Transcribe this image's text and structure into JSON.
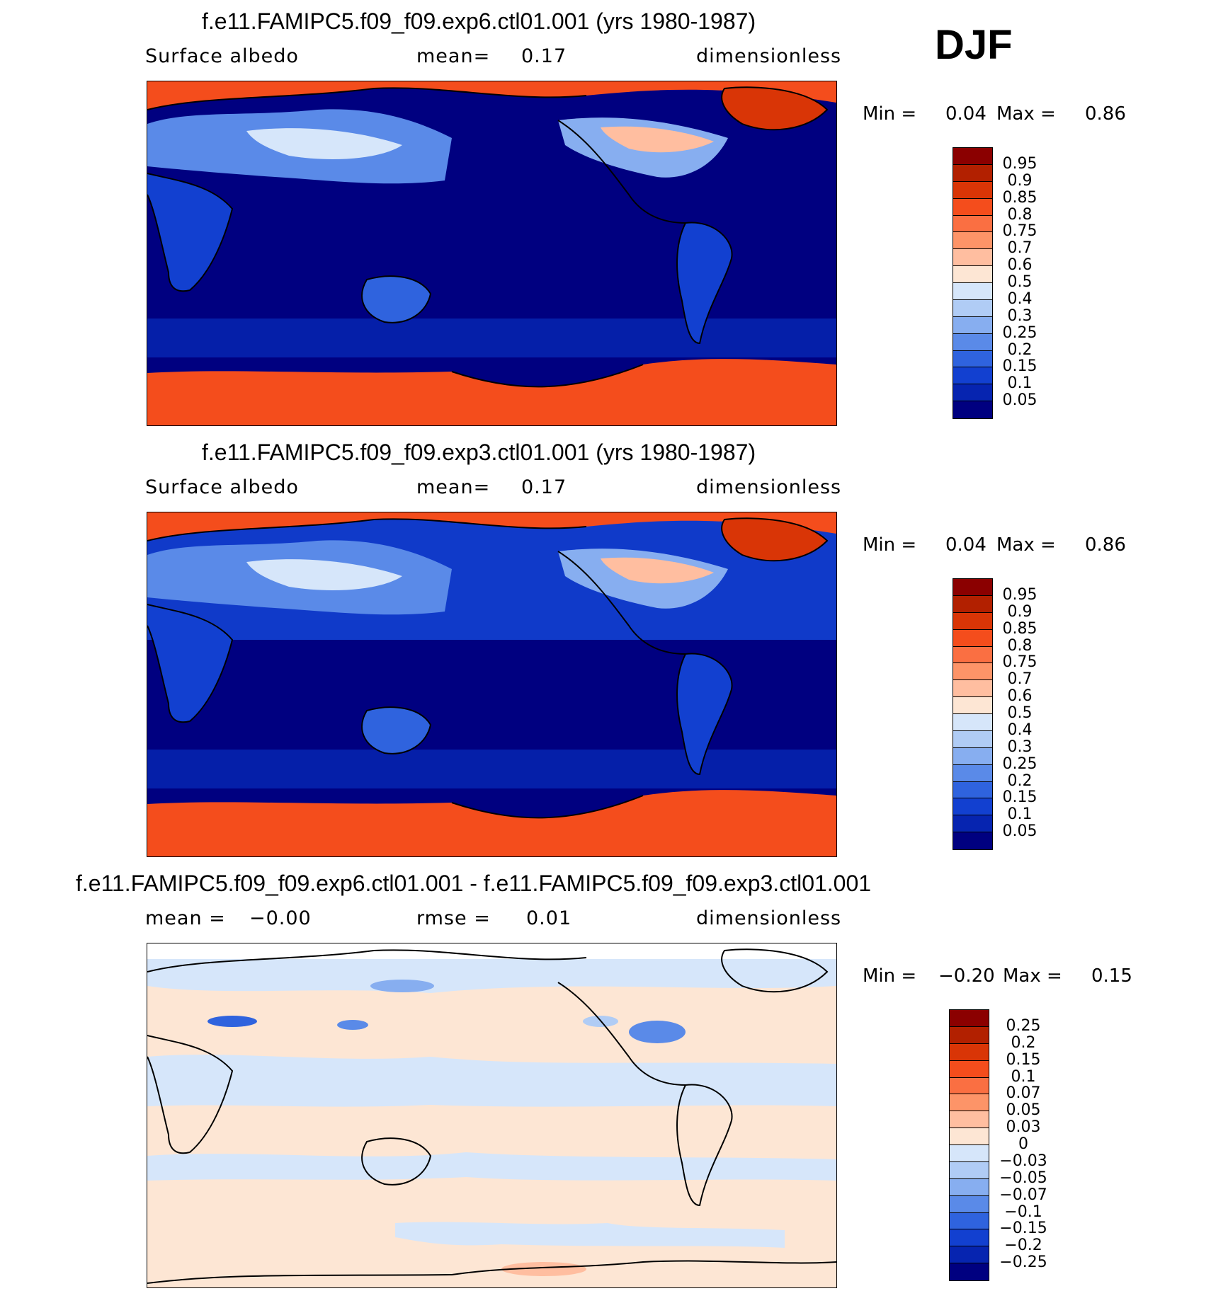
{
  "season": "DJF",
  "panels": [
    {
      "title": "f.e11.FAMIPC5.f09_f09.exp6.ctl01.001 (yrs 1980-1987)",
      "left_text": "Surface albedo",
      "middle_label": "mean=",
      "middle_value": "0.17",
      "right_text": "dimensionless",
      "min_label": "Min =",
      "min_value": "0.04",
      "max_label": "Max =",
      "max_value": "0.86",
      "colorbar_labels": [
        "0.95",
        "0.9",
        "0.85",
        "0.8",
        "0.75",
        "0.7",
        "0.6",
        "0.5",
        "0.4",
        "0.3",
        "0.25",
        "0.2",
        "0.15",
        "0.1",
        "0.05"
      ],
      "colorbar_colors": [
        "#8b0000",
        "#b22000",
        "#d93506",
        "#f44d1c",
        "#fa6f42",
        "#fd9468",
        "#ffbea0",
        "#fde6d4",
        "#d6e6fa",
        "#b0ccf5",
        "#87aef0",
        "#5a8ae8",
        "#2f63de",
        "#1240d0",
        "#0624b0",
        "#000080"
      ]
    },
    {
      "title": "f.e11.FAMIPC5.f09_f09.exp3.ctl01.001 (yrs 1980-1987)",
      "left_text": "Surface albedo",
      "middle_label": "mean=",
      "middle_value": "0.17",
      "right_text": "dimensionless",
      "min_label": "Min =",
      "min_value": "0.04",
      "max_label": "Max =",
      "max_value": "0.86",
      "colorbar_labels": [
        "0.95",
        "0.9",
        "0.85",
        "0.8",
        "0.75",
        "0.7",
        "0.6",
        "0.5",
        "0.4",
        "0.3",
        "0.25",
        "0.2",
        "0.15",
        "0.1",
        "0.05"
      ],
      "colorbar_colors": [
        "#8b0000",
        "#b22000",
        "#d93506",
        "#f44d1c",
        "#fa6f42",
        "#fd9468",
        "#ffbea0",
        "#fde6d4",
        "#d6e6fa",
        "#b0ccf5",
        "#87aef0",
        "#5a8ae8",
        "#2f63de",
        "#1240d0",
        "#0624b0",
        "#000080"
      ]
    },
    {
      "title": "f.e11.FAMIPC5.f09_f09.exp6.ctl01.001 - f.e11.FAMIPC5.f09_f09.exp3.ctl01.001",
      "left_text": "mean =",
      "left_value": "−0.00",
      "middle_label": "rmse =",
      "middle_value": "0.01",
      "right_text": "dimensionless",
      "min_label": "Min =",
      "min_value": "−0.20",
      "max_label": "Max =",
      "max_value": "0.15",
      "colorbar_labels": [
        "0.25",
        "0.2",
        "0.15",
        "0.1",
        "0.07",
        "0.05",
        "0.03",
        "0",
        "−0.03",
        "−0.05",
        "−0.07",
        "−0.1",
        "−0.15",
        "−0.2",
        "−0.25"
      ],
      "colorbar_colors": [
        "#8b0000",
        "#b22000",
        "#d93506",
        "#f44d1c",
        "#fa6f42",
        "#fd9468",
        "#ffbea0",
        "#fde6d4",
        "#d6e6fa",
        "#b0ccf5",
        "#87aef0",
        "#5a8ae8",
        "#2f63de",
        "#1240d0",
        "#0624b0",
        "#000080"
      ]
    }
  ]
}
